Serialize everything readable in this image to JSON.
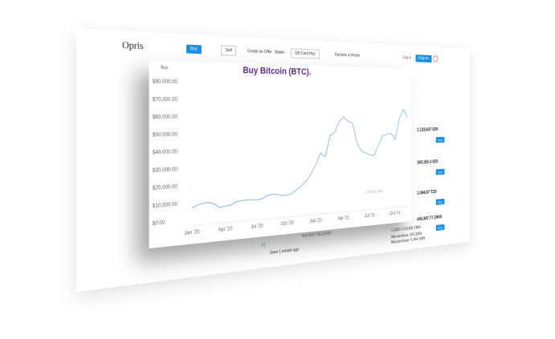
{
  "nav": {
    "logo": "Opris",
    "buy": "Buy",
    "sell": "Sell",
    "create_offer": "Create an Offer",
    "wallet": "Wallet",
    "gift_card_hub": "Gift Card Hub",
    "become_vendor": "Become a Vendor",
    "login": "Log in",
    "register": "Register"
  },
  "page": {
    "breadcrumb": "Buy",
    "heading": "Buy Bitcoin (BTC)."
  },
  "chart_data": {
    "type": "line",
    "watermark": "CoinGecko",
    "categories": [
      "Jan '20",
      null,
      null,
      null,
      null,
      null,
      "Apr '20",
      null,
      null,
      null,
      null,
      null,
      "Jul '20",
      null,
      null,
      null,
      null,
      null,
      "Oct '20",
      null,
      null,
      null,
      null,
      null,
      "Jan '21",
      null,
      null,
      null,
      null,
      null,
      "Apr '21",
      null,
      null,
      null,
      null,
      null,
      "Jul '21",
      null,
      null,
      null,
      null,
      null,
      "Oct '21",
      null,
      null,
      null
    ],
    "series": [
      {
        "color": "#9dbfe6",
        "values": [
          7200,
          8700,
          9400,
          9700,
          8500,
          6200,
          6800,
          7100,
          8800,
          9300,
          9500,
          9300,
          9100,
          9500,
          11300,
          11800,
          11500,
          10700,
          10600,
          11500,
          13700,
          16000,
          19000,
          23500,
          29000,
          36000,
          33500,
          47000,
          49000,
          56000,
          58900,
          56000,
          55000,
          42000,
          36500,
          35000,
          33500,
          33000,
          39800,
          46000,
          47000,
          47500,
          43500,
          57000,
          64000,
          58000
        ]
      }
    ],
    "ylim": [
      0,
      80000
    ],
    "yticks": [
      {
        "value": 0,
        "label": "$0.00"
      },
      {
        "value": 10000,
        "label": "$10,000.00"
      },
      {
        "value": 20000,
        "label": "$20,000.00"
      },
      {
        "value": 30000,
        "label": "$30,000.00"
      },
      {
        "value": 40000,
        "label": "$40,000.00"
      },
      {
        "value": 50000,
        "label": "$50,000.00"
      },
      {
        "value": 60000,
        "label": "$60,000.00"
      },
      {
        "value": 70000,
        "label": "$70,000.00"
      },
      {
        "value": 80000,
        "label": "$80,000.00"
      }
    ],
    "grid": false
  },
  "offers": [
    {
      "price": "1,123,647 IDR",
      "button": "Buy"
    },
    {
      "price": "180,155.4 IDR",
      "button": "Buy"
    },
    {
      "price": "1,064.87 TZS",
      "button": "Buy"
    },
    {
      "price": "440,347.77 ZMW",
      "button": "Buy"
    }
  ],
  "offer_details": {
    "rate": "1 USD = 102,405 ZMW",
    "min": "Min purchase: 200 ZMW",
    "max": "Max purchase: 5,364 ZMW"
  },
  "seller": {
    "trades": "10",
    "seen": "Seen 1 minute ago",
    "release": "INSTANT RELEASE"
  }
}
